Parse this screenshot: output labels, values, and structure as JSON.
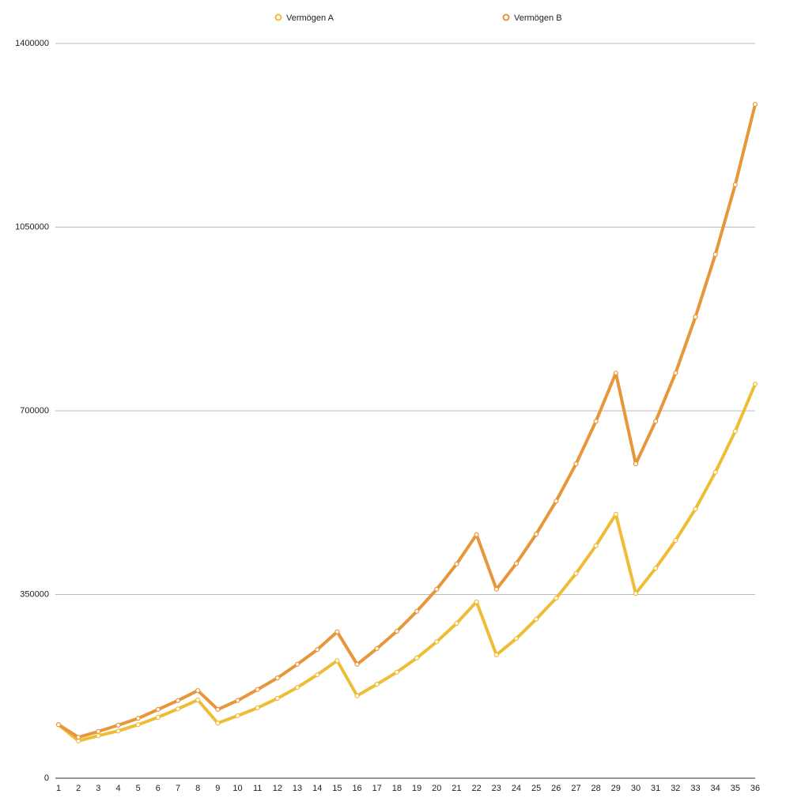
{
  "chart_data": {
    "type": "line",
    "categories": [
      "1",
      "2",
      "3",
      "4",
      "5",
      "6",
      "7",
      "8",
      "9",
      "10",
      "11",
      "12",
      "13",
      "14",
      "15",
      "16",
      "17",
      "18",
      "19",
      "20",
      "21",
      "22",
      "23",
      "24",
      "25",
      "26",
      "27",
      "28",
      "29",
      "30",
      "31",
      "32",
      "33",
      "34",
      "35",
      "36"
    ],
    "series": [
      {
        "name": "Vermögen A",
        "color": "#efbd35",
        "values": [
          102000,
          71000,
          81000,
          90000,
          102000,
          116000,
          132000,
          149000,
          105000,
          119000,
          134000,
          152000,
          173000,
          197000,
          224000,
          157000,
          179000,
          202000,
          229000,
          260000,
          295000,
          336000,
          235000,
          266000,
          303000,
          343000,
          390000,
          443000,
          503000,
          352000,
          400000,
          453000,
          513000,
          583000,
          661000,
          751000
        ]
      },
      {
        "name": "Vermögen B",
        "color": "#e8963a",
        "values": [
          102000,
          78000,
          89000,
          101000,
          114000,
          131000,
          148000,
          167000,
          131000,
          148000,
          169000,
          191000,
          217000,
          245000,
          279000,
          217000,
          247000,
          280000,
          318000,
          360000,
          408000,
          464000,
          360000,
          409000,
          465000,
          528000,
          599000,
          680000,
          772000,
          599000,
          680000,
          772000,
          879000,
          998000,
          1131000,
          1284000
        ]
      }
    ],
    "ylim": [
      0,
      1400000
    ],
    "yticks": [
      0,
      350000,
      700000,
      1050000,
      1400000
    ],
    "grid": true,
    "legend": "top"
  }
}
